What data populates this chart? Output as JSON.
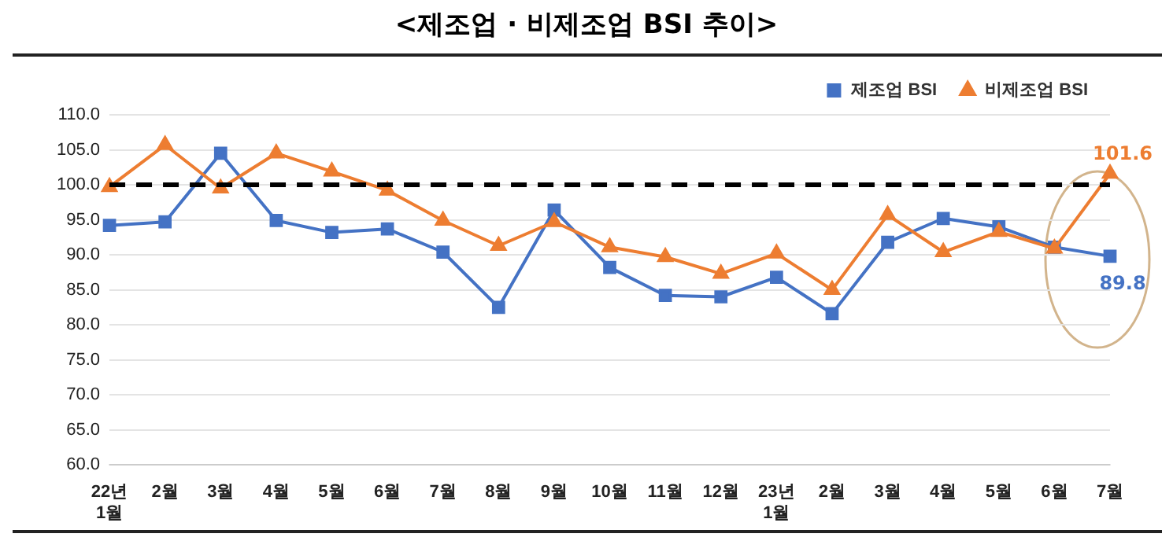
{
  "chart_data": {
    "type": "line",
    "title": "<제조업 · 비제조업 BSI 추이>",
    "categories": [
      "22년\n1월",
      "2월",
      "3월",
      "4월",
      "5월",
      "6월",
      "7월",
      "8월",
      "9월",
      "10월",
      "11월",
      "12월",
      "23년\n1월",
      "2월",
      "3월",
      "4월",
      "5월",
      "6월",
      "7월"
    ],
    "series": [
      {
        "name": "제조업 BSI",
        "color": "#4472c4",
        "marker": "square",
        "values": [
          94.2,
          94.7,
          104.5,
          94.9,
          93.2,
          93.7,
          90.4,
          82.5,
          96.4,
          88.2,
          84.2,
          84.0,
          86.8,
          81.6,
          91.8,
          95.2,
          94.0,
          91.1,
          89.8
        ],
        "value_labels": [
          null,
          null,
          null,
          null,
          null,
          null,
          null,
          null,
          null,
          null,
          null,
          null,
          null,
          null,
          null,
          null,
          null,
          null,
          "89.8"
        ]
      },
      {
        "name": "비제조업 BSI",
        "color": "#ed7d31",
        "marker": "triangle",
        "values": [
          99.7,
          105.7,
          99.5,
          104.5,
          101.9,
          99.2,
          94.9,
          91.3,
          94.7,
          91.1,
          89.7,
          87.3,
          90.2,
          85.0,
          95.7,
          90.4,
          93.3,
          90.9,
          101.6
        ],
        "value_labels": [
          null,
          null,
          null,
          null,
          null,
          null,
          null,
          null,
          null,
          null,
          null,
          null,
          null,
          null,
          null,
          null,
          null,
          null,
          "101.6"
        ]
      }
    ],
    "ylim": [
      60,
      110
    ],
    "yticks": [
      {
        "value": 60,
        "label": "60.0"
      },
      {
        "value": 65,
        "label": "65.0"
      },
      {
        "value": 70,
        "label": "70.0"
      },
      {
        "value": 75,
        "label": "75.0"
      },
      {
        "value": 80,
        "label": "80.0"
      },
      {
        "value": 85,
        "label": "85.0"
      },
      {
        "value": 90,
        "label": "90.0"
      },
      {
        "value": 95,
        "label": "95.0"
      },
      {
        "value": 100,
        "label": "100.0"
      },
      {
        "value": 105,
        "label": "105.0"
      },
      {
        "value": 110,
        "label": "110.0"
      }
    ],
    "grid": "y",
    "legend": "top right",
    "line_style": "solid",
    "ref_lines": [
      {
        "axis": "y",
        "value": 100,
        "label": null,
        "color": "#000000",
        "line_style": "dashed"
      }
    ]
  }
}
